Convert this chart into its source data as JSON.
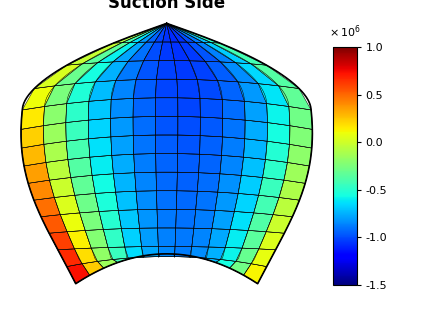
{
  "title": "Suction Side",
  "title_fontsize": 12,
  "title_fontweight": "bold",
  "colormap": "jet",
  "vmin": -1500000.0,
  "vmax": 1000000.0,
  "colorbar_ticks": [
    -1.5,
    -1.0,
    -0.5,
    0.0,
    0.5,
    1.0
  ],
  "background_color": "#ffffff",
  "grid_nx": 13,
  "grid_ny": 14,
  "figsize": [
    4.22,
    3.13
  ],
  "dpi": 100
}
